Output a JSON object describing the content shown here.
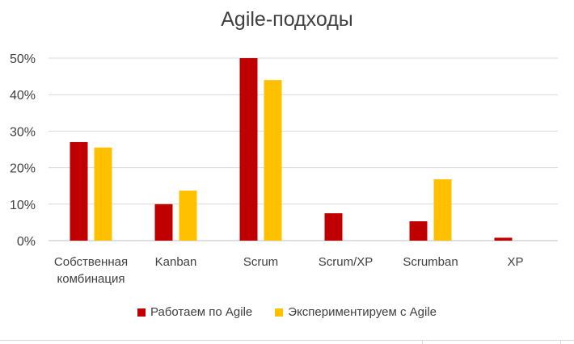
{
  "chart_data": {
    "type": "bar",
    "title": "Agile-подходы",
    "categories": [
      [
        "Собственная",
        "комбинация"
      ],
      [
        "Kanban"
      ],
      [
        "Scrum"
      ],
      [
        "Scrum/XP"
      ],
      [
        "Scrumban"
      ],
      [
        "XP"
      ]
    ],
    "series": [
      {
        "name": "Работаем по Agile",
        "color": "#c00000",
        "values": [
          27,
          10,
          50,
          7.5,
          5.3,
          0.8
        ]
      },
      {
        "name": "Экспериментируем с Agile",
        "color": "#ffc000",
        "values": [
          25.5,
          13.7,
          44,
          0,
          16.8,
          0
        ]
      }
    ],
    "ylim": [
      0,
      50
    ],
    "yticks": [
      0,
      10,
      20,
      30,
      40,
      50
    ],
    "ytick_labels": [
      "0%",
      "10%",
      "20%",
      "30%",
      "40%",
      "50%"
    ],
    "grid": true,
    "legend_position": "bottom"
  }
}
